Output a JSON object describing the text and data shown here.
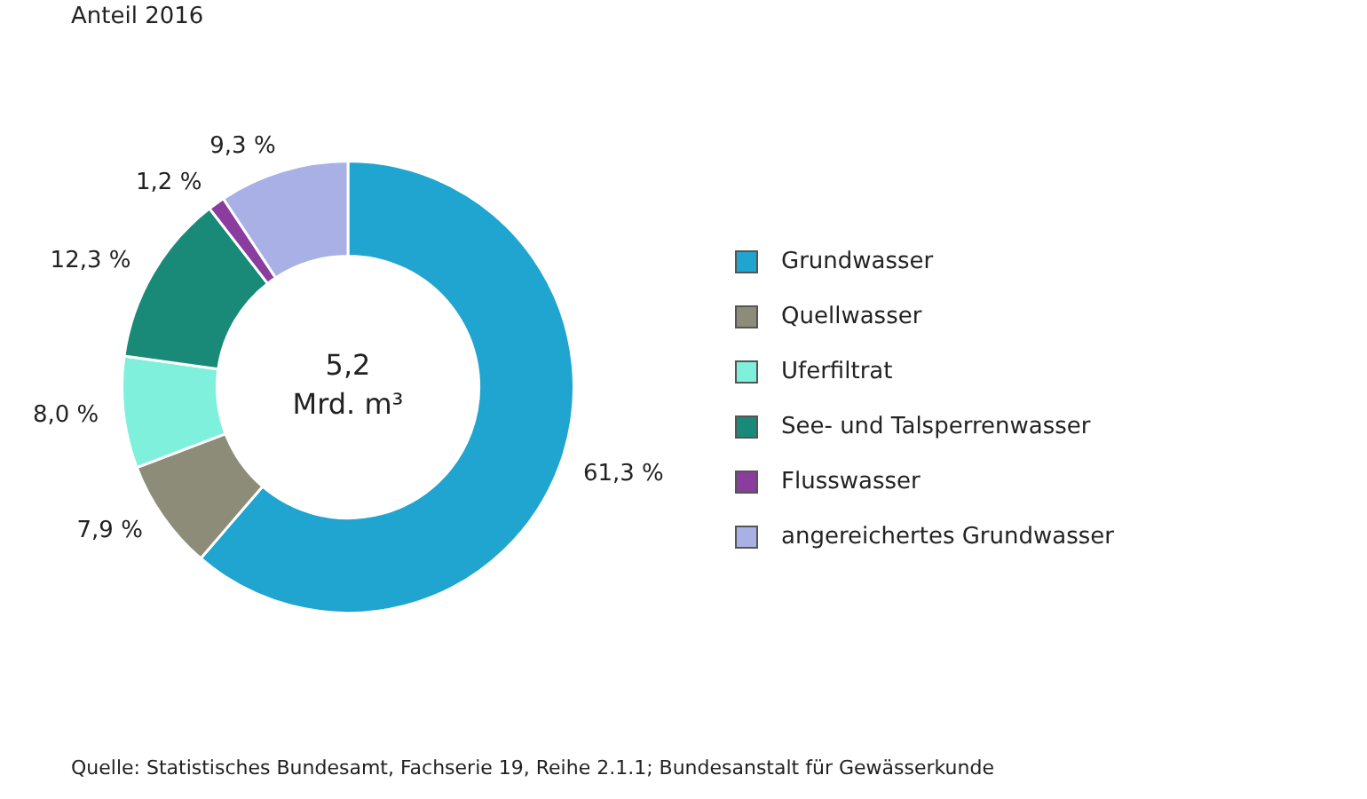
{
  "chart_data": {
    "type": "donut",
    "subtitle": "Anteil 2016",
    "categories": [
      "Grundwasser",
      "Quellwasser",
      "Uferfiltrat",
      "See- und Talsperrenwasser",
      "Flusswasser",
      "angereichertes Grundwasser"
    ],
    "values": [
      61.3,
      7.9,
      8.0,
      12.3,
      1.2,
      9.3
    ],
    "value_labels": [
      "61,3 %",
      "7,9 %",
      "8,0 %",
      "12,3 %",
      "1,2 %",
      "9,3 %"
    ],
    "colors": [
      "#1fa5cf",
      "#8c8c78",
      "#7ff0dc",
      "#1a8a78",
      "#8a3d9e",
      "#a8b0e6"
    ],
    "legend": "right",
    "annotations": [
      "5,2 Mrd. m³",
      "Quelle: Statistisches Bundesamt, Fachserie 19, Reihe 2.1.1; Bundesanstalt für Gewässerkunde"
    ]
  }
}
